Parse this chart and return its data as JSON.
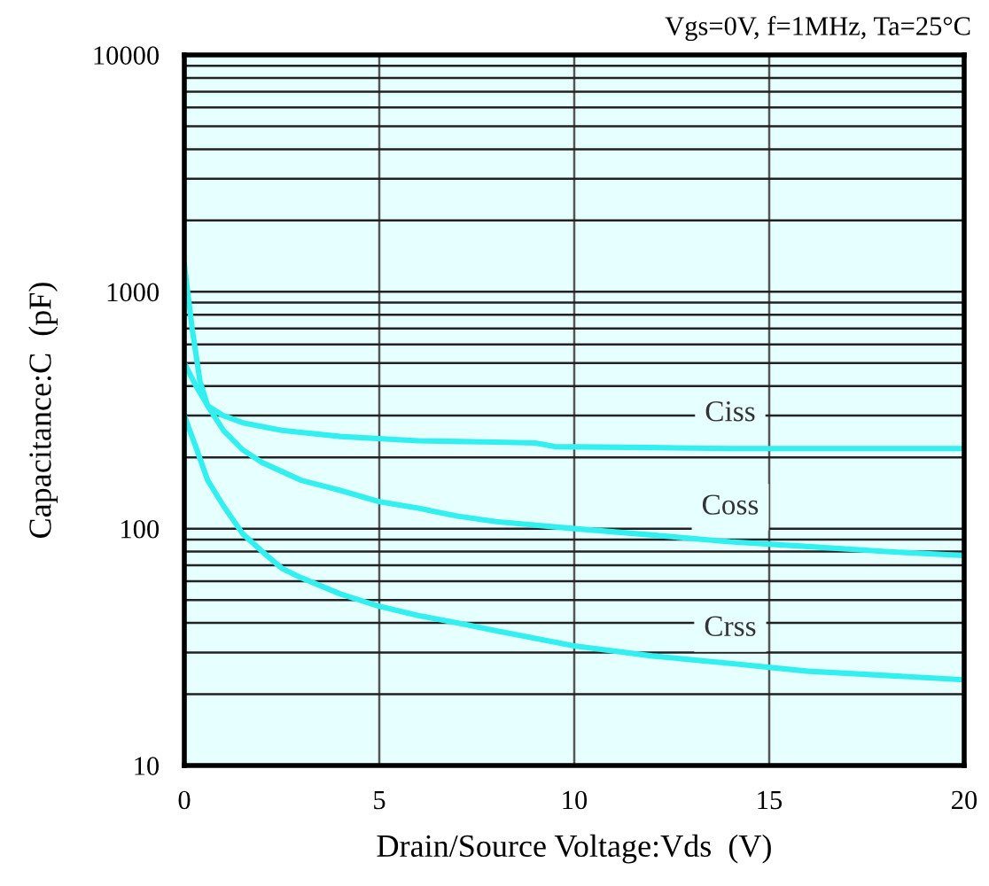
{
  "chart_data": {
    "type": "line",
    "title": "Vgs=0V, f=1MHz, Ta=25°C",
    "xlabel": "Drain/Source Voltage:Vds  (V)",
    "ylabel": "Capacitance:C  (pF)",
    "log": "y",
    "xlim": [
      0,
      20
    ],
    "xticks": [
      0,
      5,
      10,
      15,
      20
    ],
    "ylim": [
      10,
      10000
    ],
    "yticks": [
      10,
      100,
      1000,
      10000
    ],
    "grid": true,
    "marker": "none",
    "line_style": "solid",
    "series": [
      {
        "name": "Ciss",
        "color": "#33f0f0",
        "x": [
          0,
          0.2,
          0.4,
          0.6,
          1,
          1.5,
          2.5,
          4,
          6,
          8,
          9,
          9.5,
          12,
          14,
          20
        ],
        "values": [
          1300,
          700,
          420,
          330,
          300,
          280,
          260,
          245,
          235,
          232,
          230,
          222,
          220,
          218,
          218
        ]
      },
      {
        "name": "Coss",
        "color": "#33f0f0",
        "x": [
          0,
          0.3,
          0.6,
          1,
          1.5,
          2,
          3,
          4,
          5,
          6,
          7,
          8,
          10,
          12,
          14,
          16,
          18,
          20
        ],
        "values": [
          500,
          400,
          330,
          260,
          215,
          190,
          160,
          145,
          130,
          122,
          113,
          107,
          100,
          94,
          88,
          84,
          80,
          77
        ]
      },
      {
        "name": "Crss",
        "color": "#33f0f0",
        "x": [
          0,
          0.3,
          0.6,
          1,
          1.5,
          2,
          2.5,
          3,
          4,
          5,
          6,
          7,
          8,
          10,
          12,
          14,
          16,
          18,
          20
        ],
        "values": [
          300,
          220,
          160,
          125,
          95,
          80,
          68,
          62,
          53,
          47,
          43,
          40,
          37,
          32,
          29,
          27,
          25,
          24,
          23
        ]
      }
    ]
  }
}
